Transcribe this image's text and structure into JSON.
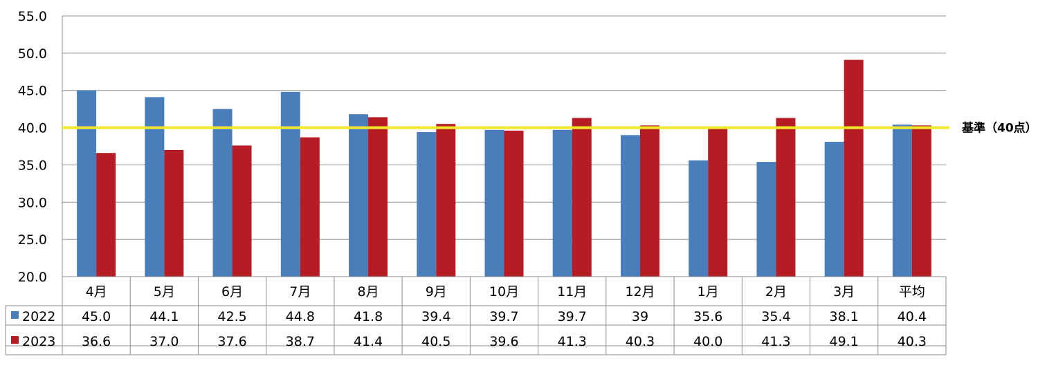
{
  "chart_data": {
    "type": "bar",
    "categories": [
      "4月",
      "5月",
      "6月",
      "7月",
      "8月",
      "9月",
      "10月",
      "11月",
      "12月",
      "1月",
      "2月",
      "3月",
      "平均"
    ],
    "series": [
      {
        "name": "2022",
        "color": "#4a7ebb",
        "values": [
          45.0,
          44.1,
          42.5,
          44.8,
          41.8,
          39.4,
          39.7,
          39.7,
          39,
          35.6,
          35.4,
          38.1,
          40.4
        ],
        "labels": [
          "45.0",
          "44.1",
          "42.5",
          "44.8",
          "41.8",
          "39.4",
          "39.7",
          "39.7",
          "39",
          "35.6",
          "35.4",
          "38.1",
          "40.4"
        ]
      },
      {
        "name": "2023",
        "color": "#b71c24",
        "values": [
          36.6,
          37.0,
          37.6,
          38.7,
          41.4,
          40.5,
          39.6,
          41.3,
          40.3,
          40.0,
          41.3,
          49.1,
          40.3
        ],
        "labels": [
          "36.6",
          "37.0",
          "37.6",
          "38.7",
          "41.4",
          "40.5",
          "39.6",
          "41.3",
          "40.3",
          "40.0",
          "41.3",
          "49.1",
          "40.3"
        ]
      }
    ],
    "ylim": [
      20,
      55
    ],
    "yticks": [
      "20.0",
      "25.0",
      "30.0",
      "35.0",
      "40.0",
      "45.0",
      "50.0",
      "55.0"
    ],
    "grid": true,
    "legend": "data-table",
    "reference_line": {
      "value": 40,
      "label": "基準（40点）",
      "color": "#f0ea2a"
    },
    "xlabel": "",
    "ylabel": "",
    "title": ""
  }
}
